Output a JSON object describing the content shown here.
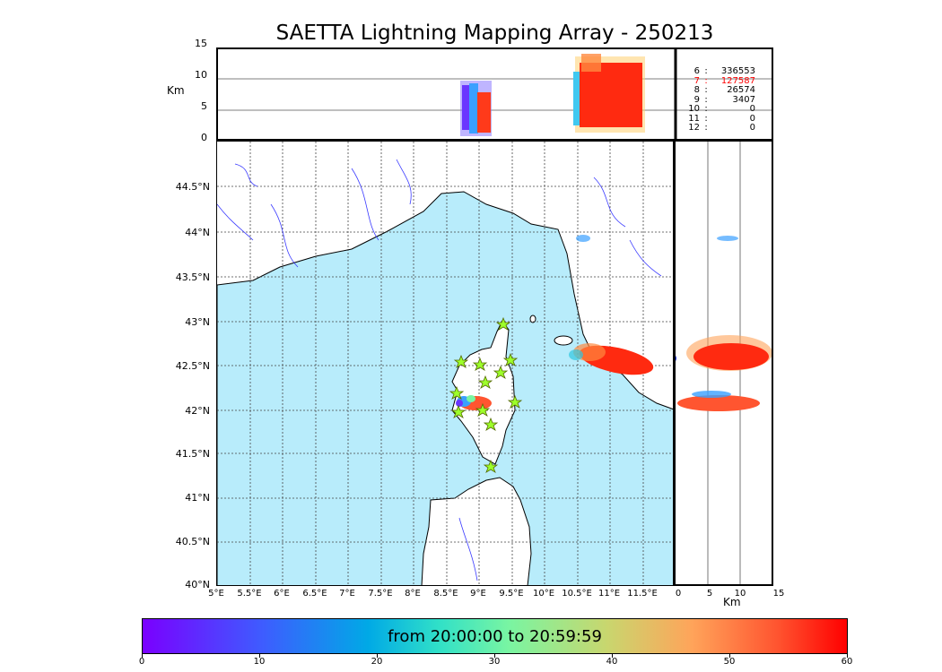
{
  "title": "SAETTA Lightning Mapping Array - 250213",
  "top_panel": {
    "y_unit": "Km",
    "y_ticks": [
      "15",
      "10",
      "5",
      "0"
    ]
  },
  "counts": [
    {
      "alt": "6",
      "sep": ":",
      "count": "336553",
      "color": "#000000"
    },
    {
      "alt": "7",
      "sep": ":",
      "count": "127587",
      "color": "#ff0000"
    },
    {
      "alt": "8",
      "sep": ":",
      "count": "26574",
      "color": "#000000"
    },
    {
      "alt": "9",
      "sep": ":",
      "count": "3407",
      "color": "#000000"
    },
    {
      "alt": "10",
      "sep": ":",
      "count": "0",
      "color": "#000000"
    },
    {
      "alt": "11",
      "sep": ":",
      "count": "0",
      "color": "#000000"
    },
    {
      "alt": "12",
      "sep": ":",
      "count": "0",
      "color": "#000000"
    }
  ],
  "map": {
    "lat_ticks": [
      "44.5°N",
      "44°N",
      "43.5°N",
      "43°N",
      "42.5°N",
      "42°N",
      "41.5°N",
      "41°N",
      "40.5°N",
      "40°N"
    ],
    "lon_ticks": [
      "5°E",
      "5.5°E",
      "6°E",
      "6.5°E",
      "7°E",
      "7.5°E",
      "8°E",
      "8.5°E",
      "9°E",
      "9.5°E",
      "10°E",
      "10.5°E",
      "11°E",
      "11.5°E"
    ],
    "sea_color": "#b8ecfb",
    "river_color": "#3a3aff"
  },
  "side_panel": {
    "x_unit": "Km",
    "x_ticks": [
      "0",
      "5",
      "10",
      "15"
    ]
  },
  "colorbar": {
    "label": "from 20:00:00 to 20:59:59",
    "ticks": [
      "0",
      "10",
      "20",
      "30",
      "40",
      "50",
      "60"
    ]
  }
}
